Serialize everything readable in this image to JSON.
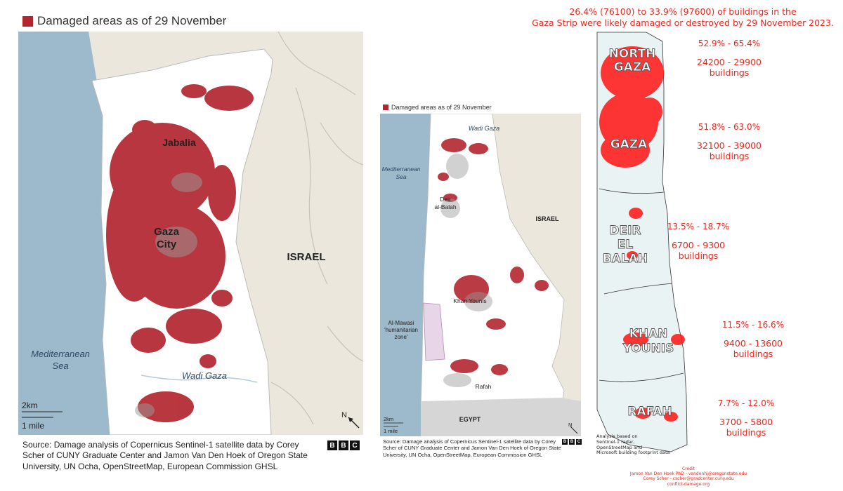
{
  "colors": {
    "damage": "#b3262f",
    "sea": "#9db9cc",
    "land": "#ece7dc",
    "strip": "#ffffff",
    "egypt": "#d6d6d6",
    "stat_red": "#e8271f"
  },
  "map1": {
    "legend_label": "Damaged areas as of 29 November",
    "labels": {
      "jabalia": "Jabalia",
      "gaza": "Gaza",
      "city": "City",
      "israel": "ISRAEL",
      "sea1": "Mediterranean",
      "sea2": "Sea",
      "wadi": "Wadi Gaza"
    },
    "scale_km": "2km",
    "scale_mile": "1 mile",
    "north": "N",
    "source_lines": [
      "Source: Damage analysis of Copernicus Sentinel-1 satellite data by Corey",
      "Scher of CUNY Graduate Center and Jamon Van Den Hoek of Oregon State",
      "University, UN Ocha, OpenStreetMap, European Commission GHSL"
    ],
    "logo": [
      "B",
      "B",
      "C"
    ]
  },
  "map2": {
    "legend_label": "Damaged areas as of 29 November",
    "labels": {
      "wadi": "Wadi Gaza",
      "sea1": "Mediterranean",
      "sea2": "Sea",
      "deir1": "Deir",
      "deir2": "al-Balah",
      "israel": "ISRAEL",
      "khan": "Khan Younis",
      "mawasi1": "Al-Mawasi",
      "mawasi2": "'humanitarian",
      "mawasi3": "zone'",
      "rafah": "Rafah",
      "egypt": "EGYPT"
    },
    "scale_km": "2km",
    "scale_mile": "1 mile",
    "north": "N",
    "source_lines": [
      "Source: Damage analysis of Copernicus Sentinel-1 satellite data by Corey",
      "Scher of CUNY Graduate Center and Jamon Van Den Hoek of Oregon State",
      "University, UN Ocha, OpenStreetMap, European Commission GHSL"
    ],
    "logo": [
      "B",
      "B",
      "C"
    ]
  },
  "map3": {
    "headline_1": "26.4% (76100) to 33.9% (97600) of buildings in the",
    "headline_2": "Gaza Strip were likely damaged or destroyed by 29 November 2023.",
    "zones": [
      {
        "name_lines": [
          "NORTH",
          "GAZA"
        ],
        "pct": "52.9% - 65.4%",
        "count": "24200 - 29900",
        "unit": "buildings"
      },
      {
        "name_lines": [
          "GAZA"
        ],
        "pct": "51.8% - 63.0%",
        "count": "32100 - 39000",
        "unit": "buildings"
      },
      {
        "name_lines": [
          "DEIR",
          "EL",
          "BALAH"
        ],
        "pct": "13.5% - 18.7%",
        "count": "6700 - 9300",
        "unit": "buildings"
      },
      {
        "name_lines": [
          "KHAN",
          "YOUNIS"
        ],
        "pct": "11.5% - 16.6%",
        "count": "9400 - 13600",
        "unit": "buildings"
      },
      {
        "name_lines": [
          "RAFAH"
        ],
        "pct": "7.7% - 12.0%",
        "count": "3700 - 5800",
        "unit": "buildings"
      }
    ],
    "analysis_lines": [
      "Analysis based on",
      "Sentinel-1 radar,",
      "OpenStreetMap and",
      "Microsoft building footprint data"
    ],
    "credit_lines": [
      "Credit",
      "Jamon Van Den Hoek PhD - vandenhj@oregonstate.edu",
      "Corey Scher - cscher@gradcenter.cuny.edu",
      "conflict-damage.org"
    ]
  }
}
